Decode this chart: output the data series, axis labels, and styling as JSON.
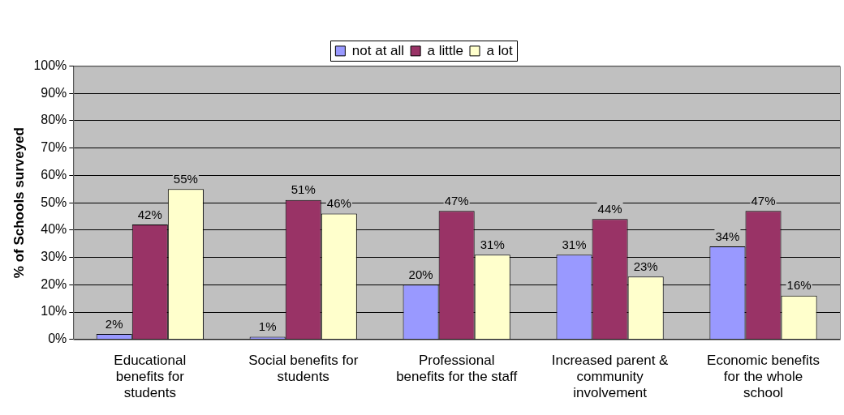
{
  "chart_data": {
    "type": "bar",
    "ylabel": "% of Schools surveyed",
    "categories": [
      "Educational benefits for students",
      "Social benefits for students",
      "Professional benefits for the staff",
      "Increased parent & community involvement",
      "Economic benefits for the whole school"
    ],
    "series": [
      {
        "name": "not at all",
        "color": "#9999ff",
        "values": [
          2,
          1,
          20,
          31,
          34
        ],
        "value_labels": [
          "2%",
          "1%",
          "20%",
          "31%",
          "34%"
        ]
      },
      {
        "name": "a little",
        "color": "#993366",
        "values": [
          42,
          51,
          47,
          44,
          47
        ],
        "value_labels": [
          "42%",
          "51%",
          "47%",
          "44%",
          "47%"
        ]
      },
      {
        "name": "a lot",
        "color": "#ffffcc",
        "values": [
          55,
          46,
          31,
          23,
          16
        ],
        "value_labels": [
          "55%",
          "46%",
          "31%",
          "23%",
          "16%"
        ]
      }
    ],
    "ylim": [
      0,
      100
    ],
    "yticks": [
      {
        "value": 0,
        "label": "0%"
      },
      {
        "value": 10,
        "label": "10%"
      },
      {
        "value": 20,
        "label": "20%"
      },
      {
        "value": 30,
        "label": "30%"
      },
      {
        "value": 40,
        "label": "40%"
      },
      {
        "value": 50,
        "label": "50%"
      },
      {
        "value": 60,
        "label": "60%"
      },
      {
        "value": 70,
        "label": "70%"
      },
      {
        "value": 80,
        "label": "80%"
      },
      {
        "value": 90,
        "label": "90%"
      },
      {
        "value": 100,
        "label": "100%"
      }
    ],
    "grid": "y",
    "legend": "top"
  }
}
